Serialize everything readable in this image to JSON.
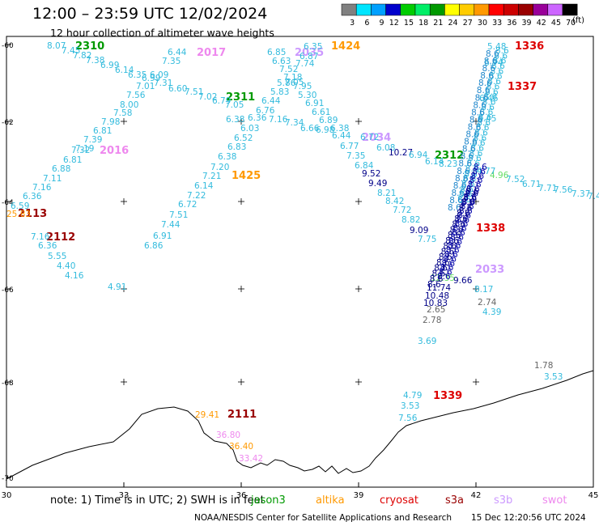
{
  "header": {
    "title": "12:00 – 23:59 UTC 12/02/2024",
    "subtitle": "12 hour collection of altimeter wave heights"
  },
  "colorbar": {
    "ticks": [
      "3",
      "6",
      "9",
      "12",
      "15",
      "18",
      "21",
      "24",
      "27",
      "30",
      "33",
      "36",
      "39",
      "42",
      "45",
      "70"
    ],
    "unit": "(ft)",
    "colors": [
      "#808080",
      "#00e5ff",
      "#00a0ff",
      "#0000cc",
      "#00cc00",
      "#00ee66",
      "#009900",
      "#ffff00",
      "#ffcc00",
      "#ff9900",
      "#ff0000",
      "#cc0000",
      "#990000",
      "#990099",
      "#cc66ff",
      "#000000"
    ]
  },
  "axes": {
    "lon_labels": [
      "30",
      "33",
      "36",
      "39",
      "42",
      "45"
    ],
    "lat_labels": [
      "-60",
      "-62",
      "-64",
      "-66",
      "-68",
      "-70"
    ]
  },
  "tracks": [
    {
      "name": "2310",
      "color": "#009900"
    },
    {
      "name": "2017",
      "color": "#ee88ee"
    },
    {
      "name": "2035",
      "color": "#cc99ff"
    },
    {
      "name": "1424",
      "color": "#ff9900"
    },
    {
      "name": "1336",
      "color": "#dd0000"
    },
    {
      "name": "1337",
      "color": "#dd0000"
    },
    {
      "name": "2311",
      "color": "#009900"
    },
    {
      "name": "2034",
      "color": "#cc99ff"
    },
    {
      "name": "2016",
      "color": "#ee88ee"
    },
    {
      "name": "2312",
      "color": "#009900"
    },
    {
      "name": "1425",
      "color": "#ff9900"
    },
    {
      "name": "2113",
      "color": "#990000"
    },
    {
      "name": "2112",
      "color": "#990000"
    },
    {
      "name": "1338",
      "color": "#dd0000"
    },
    {
      "name": "2033",
      "color": "#cc99ff"
    },
    {
      "name": "1339",
      "color": "#dd0000"
    },
    {
      "name": "2111",
      "color": "#990000"
    }
  ],
  "wave_labels": [
    {
      "t": "8.07",
      "c": "#33bbdd"
    },
    {
      "t": "7.45",
      "c": "#33bbdd"
    },
    {
      "t": "7.82",
      "c": "#33bbdd"
    },
    {
      "t": "7.38",
      "c": "#33bbdd"
    },
    {
      "t": "6.99",
      "c": "#33bbdd"
    },
    {
      "t": "6.14",
      "c": "#33bbdd"
    },
    {
      "t": "6.35",
      "c": "#33bbdd"
    },
    {
      "t": "6.44",
      "c": "#33bbdd"
    },
    {
      "t": "7.35",
      "c": "#33bbdd"
    },
    {
      "t": "6.99",
      "c": "#33bbdd"
    },
    {
      "t": "6.09",
      "c": "#33bbdd"
    },
    {
      "t": "7.31",
      "c": "#33bbdd"
    },
    {
      "t": "7.01",
      "c": "#33bbdd"
    },
    {
      "t": "6.60",
      "c": "#33bbdd"
    },
    {
      "t": "7.51",
      "c": "#33bbdd"
    },
    {
      "t": "7.02",
      "c": "#33bbdd"
    },
    {
      "t": "7.56",
      "c": "#33bbdd"
    },
    {
      "t": "6.79",
      "c": "#33bbdd"
    },
    {
      "t": "8.00",
      "c": "#33bbdd"
    },
    {
      "t": "7.58",
      "c": "#33bbdd"
    },
    {
      "t": "7.98",
      "c": "#33bbdd"
    },
    {
      "t": "6.81",
      "c": "#33bbdd"
    },
    {
      "t": "7.39",
      "c": "#33bbdd"
    },
    {
      "t": "7.19",
      "c": "#33bbdd"
    },
    {
      "t": "7.32",
      "c": "#33bbdd"
    },
    {
      "t": "6.81",
      "c": "#33bbdd"
    },
    {
      "t": "6.88",
      "c": "#33bbdd"
    },
    {
      "t": "7.11",
      "c": "#33bbdd"
    },
    {
      "t": "7.16",
      "c": "#33bbdd"
    },
    {
      "t": "6.36",
      "c": "#33bbdd"
    },
    {
      "t": "6.59",
      "c": "#33bbdd"
    },
    {
      "t": "25.83",
      "c": "#ff9900"
    },
    {
      "t": "7.16",
      "c": "#33bbdd"
    },
    {
      "t": "6.36",
      "c": "#33bbdd"
    },
    {
      "t": "5.55",
      "c": "#33bbdd"
    },
    {
      "t": "4.40",
      "c": "#33bbdd"
    },
    {
      "t": "4.16",
      "c": "#33bbdd"
    },
    {
      "t": "4.91",
      "c": "#33bbdd"
    },
    {
      "t": "6.85",
      "c": "#33bbdd"
    },
    {
      "t": "6.63",
      "c": "#33bbdd"
    },
    {
      "t": "7.74",
      "c": "#33bbdd"
    },
    {
      "t": "7.52",
      "c": "#33bbdd"
    },
    {
      "t": "7.18",
      "c": "#33bbdd"
    },
    {
      "t": "7.05",
      "c": "#33bbdd"
    },
    {
      "t": "5.86",
      "c": "#33bbdd"
    },
    {
      "t": "7.95",
      "c": "#33bbdd"
    },
    {
      "t": "5.83",
      "c": "#33bbdd"
    },
    {
      "t": "5.30",
      "c": "#33bbdd"
    },
    {
      "t": "6.44",
      "c": "#33bbdd"
    },
    {
      "t": "6.91",
      "c": "#33bbdd"
    },
    {
      "t": "7.05",
      "c": "#33bbdd"
    },
    {
      "t": "6.76",
      "c": "#33bbdd"
    },
    {
      "t": "6.36",
      "c": "#33bbdd"
    },
    {
      "t": "6.61",
      "c": "#33bbdd"
    },
    {
      "t": "7.16",
      "c": "#33bbdd"
    },
    {
      "t": "6.38",
      "c": "#33bbdd"
    },
    {
      "t": "7.34",
      "c": "#33bbdd"
    },
    {
      "t": "6.89",
      "c": "#33bbdd"
    },
    {
      "t": "6.03",
      "c": "#33bbdd"
    },
    {
      "t": "6.66",
      "c": "#33bbdd"
    },
    {
      "t": "6.38",
      "c": "#33bbdd"
    },
    {
      "t": "6.52",
      "c": "#33bbdd"
    },
    {
      "t": "6.83",
      "c": "#33bbdd"
    },
    {
      "t": "6.38",
      "c": "#33bbdd"
    },
    {
      "t": "7.20",
      "c": "#33bbdd"
    },
    {
      "t": "7.21",
      "c": "#33bbdd"
    },
    {
      "t": "6.14",
      "c": "#33bbdd"
    },
    {
      "t": "7.22",
      "c": "#33bbdd"
    },
    {
      "t": "6.72",
      "c": "#33bbdd"
    },
    {
      "t": "7.51",
      "c": "#33bbdd"
    },
    {
      "t": "7.44",
      "c": "#33bbdd"
    },
    {
      "t": "6.91",
      "c": "#33bbdd"
    },
    {
      "t": "6.86",
      "c": "#33bbdd"
    },
    {
      "t": "6.35",
      "c": "#33bbdd"
    },
    {
      "t": "6.87",
      "c": "#33bbdd"
    },
    {
      "t": "6.98",
      "c": "#33bbdd"
    },
    {
      "t": "6.44",
      "c": "#33bbdd"
    },
    {
      "t": "6.77",
      "c": "#33bbdd"
    },
    {
      "t": "7.35",
      "c": "#33bbdd"
    },
    {
      "t": "6.84",
      "c": "#33bbdd"
    },
    {
      "t": "6.72",
      "c": "#33bbdd"
    },
    {
      "t": "6.08",
      "c": "#33bbdd"
    },
    {
      "t": "9.52",
      "c": "#000088"
    },
    {
      "t": "9.49",
      "c": "#000088"
    },
    {
      "t": "8.21",
      "c": "#33bbdd"
    },
    {
      "t": "8.42",
      "c": "#33bbdd"
    },
    {
      "t": "7.72",
      "c": "#33bbdd"
    },
    {
      "t": "8.82",
      "c": "#33bbdd"
    },
    {
      "t": "9.09",
      "c": "#000088"
    },
    {
      "t": "7.75",
      "c": "#33bbdd"
    },
    {
      "t": "10.27",
      "c": "#000088"
    },
    {
      "t": "6.94",
      "c": "#33bbdd"
    },
    {
      "t": "6.14",
      "c": "#33bbdd"
    },
    {
      "t": "8.23",
      "c": "#33bbdd"
    },
    {
      "t": "4.96",
      "c": "#66dd66"
    },
    {
      "t": "7.52",
      "c": "#33bbdd"
    },
    {
      "t": "6.71",
      "c": "#33bbdd"
    },
    {
      "t": "7.71",
      "c": "#33bbdd"
    },
    {
      "t": "7.56",
      "c": "#33bbdd"
    },
    {
      "t": "7.37",
      "c": "#33bbdd"
    },
    {
      "t": "7.4",
      "c": "#33bbdd"
    },
    {
      "t": "4.77",
      "c": "#33bbdd"
    },
    {
      "t": "5.48",
      "c": "#33bbdd"
    },
    {
      "t": "6.74",
      "c": "#33bbdd"
    },
    {
      "t": "6.46",
      "c": "#33bbdd"
    },
    {
      "t": "6.45",
      "c": "#33bbdd"
    },
    {
      "t": "9.66",
      "c": "#000088"
    },
    {
      "t": "8.17",
      "c": "#33bbdd"
    },
    {
      "t": "2.74",
      "c": "#666666"
    },
    {
      "t": "4.39",
      "c": "#33bbdd"
    },
    {
      "t": "11.74",
      "c": "#000088"
    },
    {
      "t": "10.48",
      "c": "#000088"
    },
    {
      "t": "10.83",
      "c": "#000088"
    },
    {
      "t": "2.65",
      "c": "#666666"
    },
    {
      "t": "2.78",
      "c": "#666666"
    },
    {
      "t": "3.69",
      "c": "#33bbdd"
    },
    {
      "t": "12.35",
      "c": "#66dd66"
    },
    {
      "t": "1.78",
      "c": "#666666"
    },
    {
      "t": "3.53",
      "c": "#33bbdd"
    },
    {
      "t": "4.79",
      "c": "#33bbdd"
    },
    {
      "t": "3.53",
      "c": "#33bbdd"
    },
    {
      "t": "7.56",
      "c": "#33bbdd"
    },
    {
      "t": "29.41",
      "c": "#ff9900"
    },
    {
      "t": "36.80",
      "c": "#ee88ee"
    },
    {
      "t": "36.40",
      "c": "#ff9900"
    },
    {
      "t": "33.42",
      "c": "#ee88ee"
    }
  ],
  "legend": {
    "note": "note: 1) Time is in UTC; 2) SWH is in feet",
    "sats": [
      {
        "name": "jason3",
        "color": "#009900"
      },
      {
        "name": "altika",
        "color": "#ff9900"
      },
      {
        "name": "cryosat",
        "color": "#dd0000"
      },
      {
        "name": "s3a",
        "color": "#990000"
      },
      {
        "name": "s3b",
        "color": "#cc99ff"
      },
      {
        "name": "swot",
        "color": "#ee88ee"
      }
    ]
  },
  "footer": {
    "credit": "NOAA/NESDIS Center for Satellite Applications and Research",
    "date": "15 Dec 12:20:56 UTC 2024"
  }
}
